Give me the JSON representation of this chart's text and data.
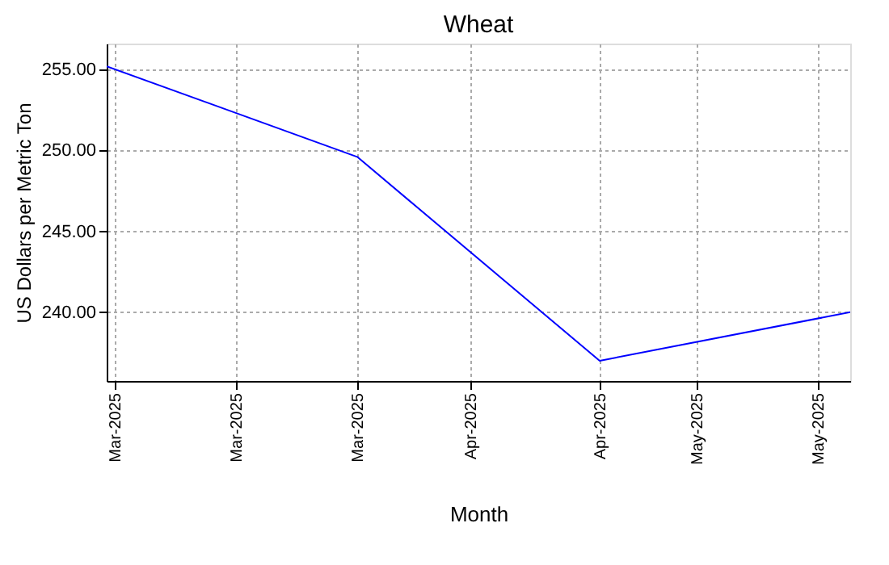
{
  "chart_data": {
    "type": "line",
    "title": "Wheat",
    "xlabel": "Month",
    "ylabel": "US Dollars per Metric Ton",
    "x": [
      "2025-02-28",
      "2025-03-31",
      "2025-04-30",
      "2025-05-31"
    ],
    "series": [
      {
        "color": "#0000ff",
        "values": [
          255.2,
          249.6,
          237.0,
          240.0
        ]
      }
    ],
    "xlim": [
      "2025-02-28",
      "2025-05-31"
    ],
    "xticks": [
      {
        "value": "2025-03-01",
        "label": "Mar-2025"
      },
      {
        "value": "2025-03-16",
        "label": "Mar-2025"
      },
      {
        "value": "2025-03-31",
        "label": "Mar-2025"
      },
      {
        "value": "2025-04-14",
        "label": "Apr-2025"
      },
      {
        "value": "2025-04-30",
        "label": "Apr-2025"
      },
      {
        "value": "2025-05-12",
        "label": "May-2025"
      },
      {
        "value": "2025-05-27",
        "label": "May-2025"
      }
    ],
    "ylim": [
      235.75,
      256.6
    ],
    "yticks": [
      {
        "value": 240,
        "label": "240.00"
      },
      {
        "value": 245,
        "label": "245.00"
      },
      {
        "value": 250,
        "label": "250.00"
      },
      {
        "value": 255,
        "label": "255.00"
      }
    ],
    "grid": true,
    "marker": "none",
    "line_style": "solid"
  }
}
